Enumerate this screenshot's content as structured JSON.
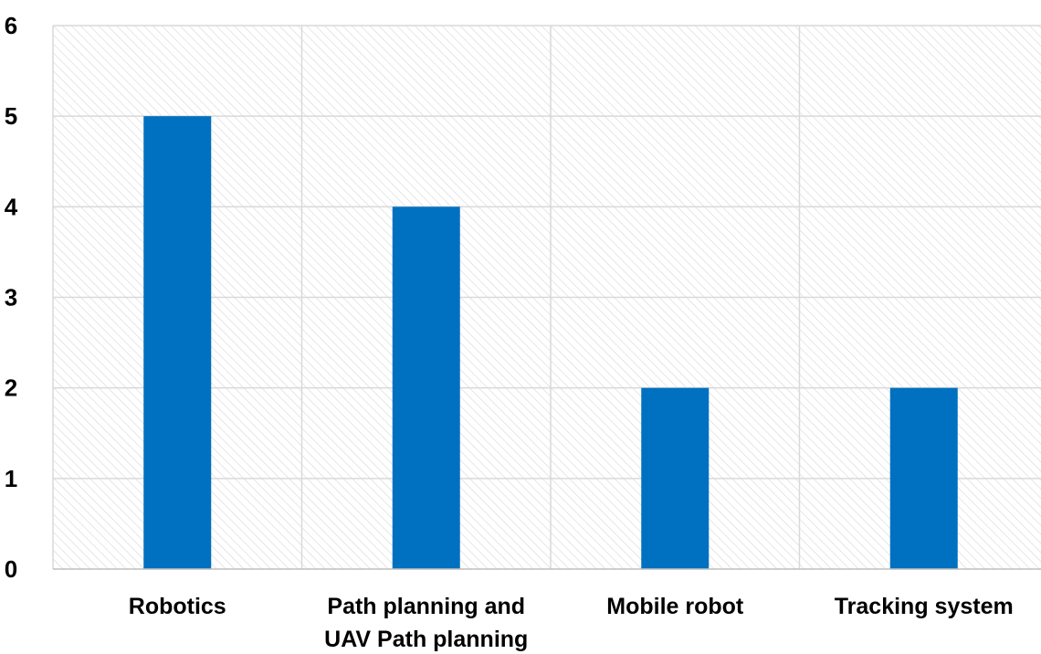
{
  "chart_data": {
    "type": "bar",
    "title": "",
    "xlabel": "",
    "ylabel": "",
    "categories": [
      [
        "Robotics"
      ],
      [
        "Path planning and",
        "UAV Path planning"
      ],
      [
        "Mobile robot"
      ],
      [
        "Tracking system"
      ]
    ],
    "values": [
      5,
      4,
      2,
      2
    ],
    "ylim": [
      0,
      6
    ],
    "yticks": [
      "0",
      "1",
      "2",
      "3",
      "4",
      "5",
      "6"
    ],
    "grid": true,
    "legend": "none",
    "bar_color": "#0070C0",
    "background": "hatched",
    "grid_color": "#d9d9d9"
  }
}
